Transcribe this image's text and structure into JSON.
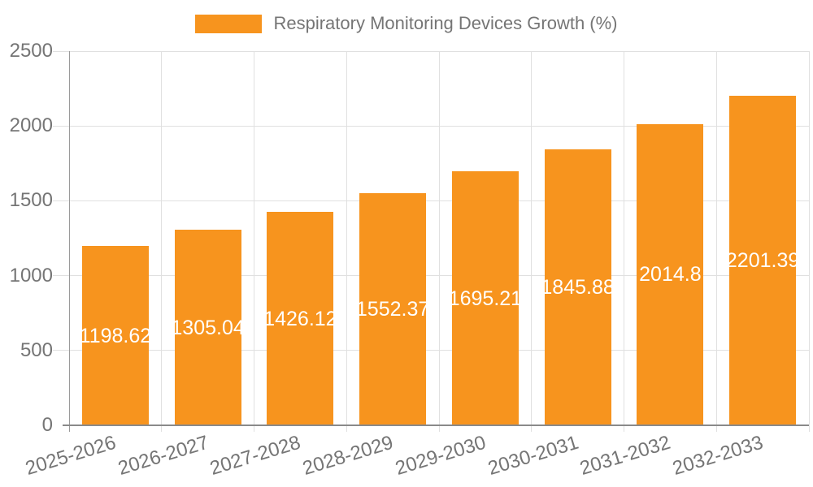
{
  "chart_data": {
    "type": "bar",
    "title": "Respiratory Monitoring Devices Growth (%)",
    "legend": {
      "position": "top",
      "entries": [
        "Respiratory Monitoring Devices Growth (%)"
      ]
    },
    "categories": [
      "2025-2026",
      "2026-2027",
      "2027-2028",
      "2028-2029",
      "2029-2030",
      "2030-2031",
      "2031-2032",
      "2032-2033"
    ],
    "series": [
      {
        "name": "Respiratory Monitoring Devices Growth (%)",
        "values": [
          1198.62,
          1305.04,
          1426.12,
          1552.37,
          1695.21,
          1845.88,
          2014.8,
          2201.39
        ],
        "value_labels": [
          "1198.62",
          "1305.04",
          "1426.12",
          "1552.37",
          "1695.21",
          "1845.88",
          "2014.8",
          "2201.39"
        ]
      }
    ],
    "xlabel": "",
    "ylabel": "",
    "ylim": [
      0,
      2500
    ],
    "yticks": [
      0,
      500,
      1000,
      1500,
      2000,
      2500
    ],
    "grid": true,
    "bar_label_position": "middle-inside",
    "colors": {
      "bar": "#F7941E",
      "axis_text": "#757575",
      "grid": "#E0E0E0",
      "axis_line": "#9A9A9A",
      "baseline": "#8A8A8A",
      "bar_label": "#FFFFFF"
    }
  }
}
